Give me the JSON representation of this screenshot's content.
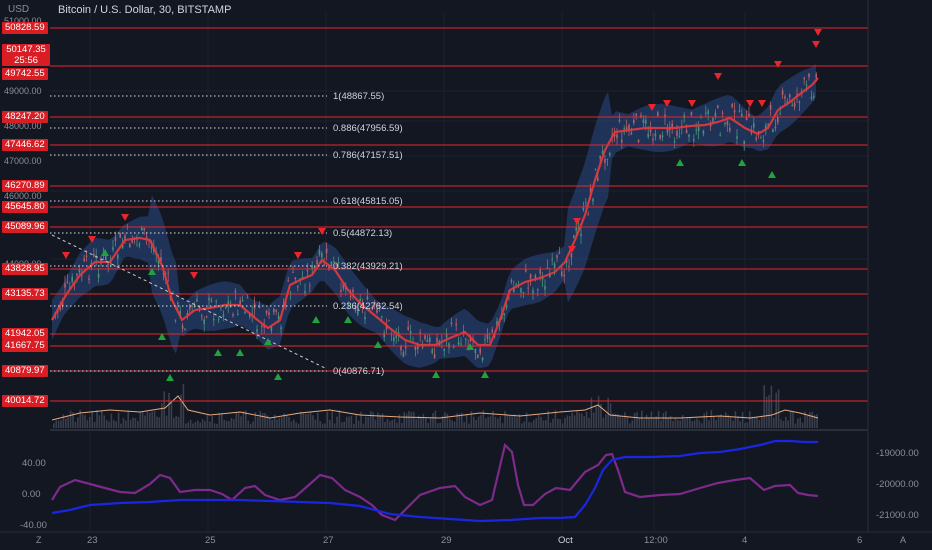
{
  "header": {
    "currency": "USD",
    "title": "Bitcoin / U.S. Dollar, 30, BITSTAMP"
  },
  "price_box": {
    "price": "50147.35",
    "countdown": "25:56"
  },
  "axis_left": [
    "51000.00",
    "49000.00",
    "48000.00",
    "47000.00",
    "46000.00",
    "44000.00"
  ],
  "levels": [
    "50828.59",
    "49742.55",
    "48247.20",
    "47446.62",
    "46270.89",
    "45645.80",
    "45089.96",
    "43828.95",
    "43135.73",
    "41942.05",
    "41667.75",
    "40879.97",
    "40014.72"
  ],
  "fib_labels": [
    "1(48867.55)",
    "0.886(47956.59)",
    "0.786(47157.51)",
    "0.618(45815.05)",
    "0.5(44872.13)",
    "0.382(43929.21)",
    "0.236(42762.54)",
    "0(40876.71)"
  ],
  "x_labels": [
    "23",
    "25",
    "27",
    "29",
    "Oct",
    "12:00",
    "4",
    "6"
  ],
  "indicator_left": [
    "40.00",
    "0.00",
    "-40.00"
  ],
  "indicator_right": [
    "-19000.00",
    "-20000.00",
    "-21000.00"
  ],
  "footer": {
    "left_icon": "Z",
    "right_icon": "A"
  },
  "colors": {
    "background": "#131722",
    "level_line": "#e8262b",
    "ma_line": "#e5393c",
    "band": "#2a4a86",
    "up_arrow": "#1fa33d",
    "down_arrow": "#e8262b",
    "blue_line": "#1a27e0",
    "purple_line": "#7d2a8a"
  }
}
